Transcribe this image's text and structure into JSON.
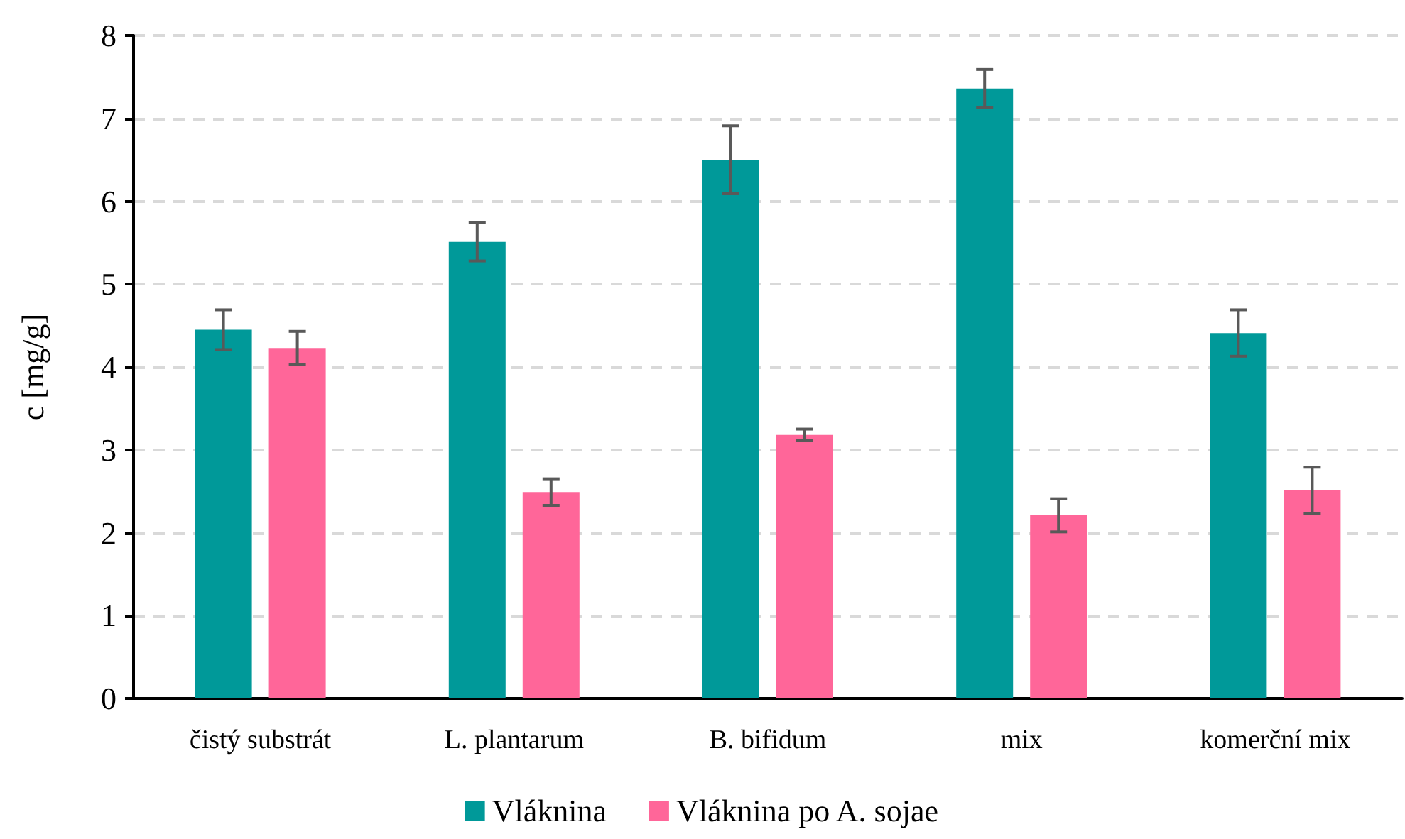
{
  "chart_data": {
    "type": "bar",
    "ylabel": "c [mg/g]",
    "categories": [
      "čistý substrát",
      "L. plantarum",
      "B. bifidum",
      "mix",
      "komerční mix"
    ],
    "series": [
      {
        "name": "Vláknina",
        "color": "#009999",
        "values": [
          4.45,
          5.51,
          6.5,
          7.36,
          4.41
        ],
        "errors": [
          0.24,
          0.23,
          0.41,
          0.23,
          0.28
        ]
      },
      {
        "name": "Vláknina po A. sojae",
        "color": "#ff6699",
        "values": [
          4.23,
          2.49,
          3.18,
          2.21,
          2.51
        ],
        "errors": [
          0.2,
          0.16,
          0.07,
          0.2,
          0.28
        ]
      }
    ],
    "ylim": [
      0,
      8
    ],
    "yticks": [
      0,
      1,
      2,
      3,
      4,
      5,
      6,
      7,
      8
    ],
    "grid": "y",
    "legend": "bottom"
  }
}
